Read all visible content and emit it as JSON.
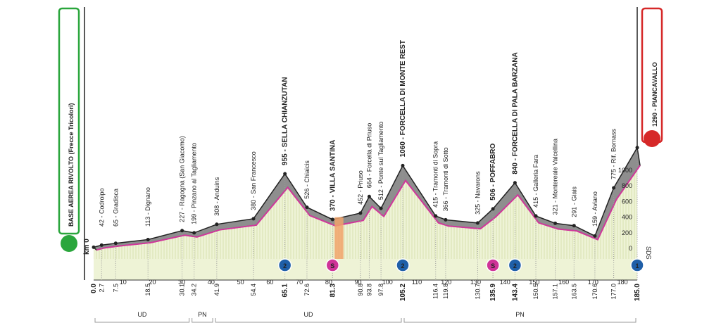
{
  "start": {
    "name": "BASE AEREA RIVOLTO (Frecce Tricolori)",
    "km_label": "km 0",
    "km": 0.0
  },
  "finish": {
    "name": "PIANCAVALLO",
    "altitude": 1290
  },
  "label_separator": " - ",
  "places": [
    {
      "altitude": 42,
      "name": "Codroipo",
      "km": 2.7
    },
    {
      "altitude": 65,
      "name": "Gradisca",
      "km": 7.5
    },
    {
      "altitude": 113,
      "name": "Dignano",
      "km": 18.5
    },
    {
      "altitude": 227,
      "name": "Ragogna (San Giacomo)",
      "km": 30.1
    },
    {
      "altitude": 199,
      "name": "Pinzano al Tagliamento",
      "km": 34.2
    },
    {
      "altitude": 308,
      "name": "Anduins",
      "km": 41.9
    },
    {
      "altitude": 380,
      "name": "San Francesco",
      "km": 54.4
    },
    {
      "altitude": 955,
      "name": "SELLA CHIANZUTAN",
      "km": 65.1,
      "bold": true
    },
    {
      "altitude": 526,
      "name": "Chiaicis",
      "km": 72.6
    },
    {
      "altitude": 370,
      "name": "VILLA SANTINA",
      "km": 81.3,
      "bold": true
    },
    {
      "altitude": 452,
      "name": "Priuso",
      "km": 90.8
    },
    {
      "altitude": 664,
      "name": "Forcella di Priuso",
      "km": 93.8
    },
    {
      "altitude": 512,
      "name": "Ponte sul Tagliamento",
      "km": 97.8
    },
    {
      "altitude": 1060,
      "name": "FORCELLA DI MONTE REST",
      "km": 105.2,
      "bold": true
    },
    {
      "altitude": 415,
      "name": "Tramonti di Sopra",
      "km": 116.4
    },
    {
      "altitude": 366,
      "name": "Tramonti di Sotto",
      "km": 119.8
    },
    {
      "altitude": 325,
      "name": "Navarons",
      "km": 130.7
    },
    {
      "altitude": 506,
      "name": "POFFABRO",
      "km": 135.9,
      "bold": true
    },
    {
      "altitude": 840,
      "name": "FORCELLA DI PALA BARZANA",
      "km": 143.4,
      "bold": true
    },
    {
      "altitude": 415,
      "name": "Galleria Fara",
      "km": 150.5
    },
    {
      "altitude": 321,
      "name": "Montereale Valcellina",
      "km": 157.1
    },
    {
      "altitude": 291,
      "name": "Giais",
      "km": 163.5
    },
    {
      "altitude": 159,
      "name": "Aviano",
      "km": 170.6
    },
    {
      "altitude": 775,
      "name": "Rif. Bornass",
      "km": 177.0
    },
    {
      "altitude": 1290,
      "name": "PIANCAVALLO",
      "km": 185.0,
      "bold": true,
      "finish": true
    }
  ],
  "km_labels": [
    "0.0",
    "2.7",
    "7.5",
    "18.5",
    "30.1",
    "34.2",
    "41.9",
    "54.4",
    "65.1",
    "72.6",
    "81.3",
    "90.8",
    "93.8",
    "97.8",
    "105.2",
    "116.4",
    "119.8",
    "130.7",
    "135.9",
    "143.4",
    "150.5",
    "157.1",
    "163.5",
    "170.6",
    "177.0",
    "185.0"
  ],
  "bold_km_labels": [
    0,
    8,
    10,
    14,
    18,
    19,
    25
  ],
  "km_ticks": [
    10,
    20,
    30,
    40,
    50,
    60,
    70,
    80,
    90,
    100,
    110,
    120,
    130,
    140,
    150,
    160,
    170,
    180
  ],
  "altitude_ticks": [
    0,
    200,
    400,
    600,
    800,
    1000
  ],
  "brand": "SDS",
  "icons": [
    {
      "km": 65.1,
      "label": "2",
      "kind": "kom"
    },
    {
      "km": 81.3,
      "label": "S",
      "kind": "sprint"
    },
    {
      "km": 105.2,
      "label": "2",
      "kind": "kom"
    },
    {
      "km": 135.9,
      "label": "S",
      "kind": "sprint"
    },
    {
      "km": 143.4,
      "label": "2",
      "kind": "kom"
    },
    {
      "km": 185.0,
      "label": "1",
      "kind": "kom"
    }
  ],
  "feed_zone": [
    82,
    85
  ],
  "regions": [
    {
      "name": "UD",
      "from": 0,
      "to": 33
    },
    {
      "name": "PN",
      "from": 33,
      "to": 41
    },
    {
      "name": "UD",
      "from": 41,
      "to": 105.2
    },
    {
      "name": "PN",
      "from": 105.2,
      "to": 185
    }
  ]
}
